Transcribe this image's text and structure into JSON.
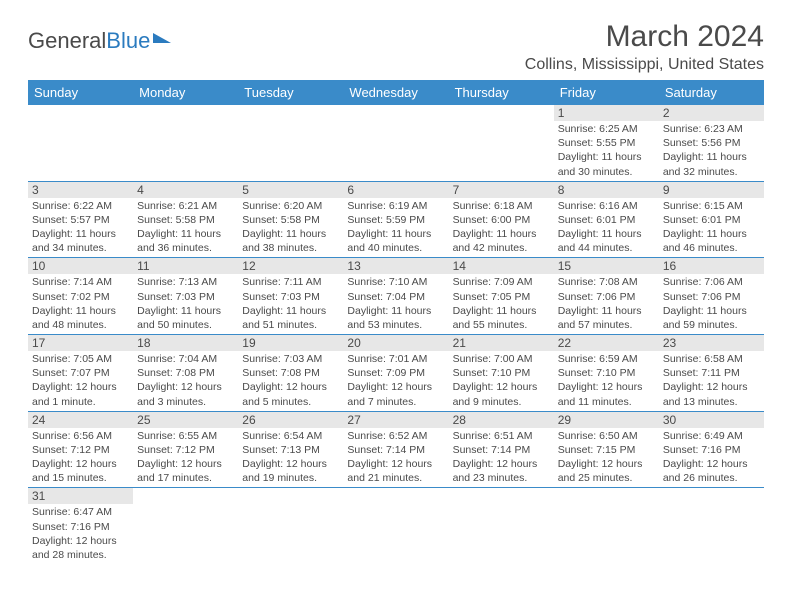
{
  "brand": {
    "part1": "General",
    "part2": "Blue"
  },
  "title": "March 2024",
  "location": "Collins, Mississippi, United States",
  "colors": {
    "header_bg": "#3a8bc9",
    "header_text": "#ffffff",
    "daynum_bg": "#e7e7e7",
    "text": "#4a4a4a",
    "row_border": "#3a8bc9",
    "brand_blue": "#2b7bbf"
  },
  "weekdays": [
    "Sunday",
    "Monday",
    "Tuesday",
    "Wednesday",
    "Thursday",
    "Friday",
    "Saturday"
  ],
  "weeks": [
    [
      null,
      null,
      null,
      null,
      null,
      {
        "n": "1",
        "sr": "Sunrise: 6:25 AM",
        "ss": "Sunset: 5:55 PM",
        "dl": "Daylight: 11 hours and 30 minutes."
      },
      {
        "n": "2",
        "sr": "Sunrise: 6:23 AM",
        "ss": "Sunset: 5:56 PM",
        "dl": "Daylight: 11 hours and 32 minutes."
      }
    ],
    [
      {
        "n": "3",
        "sr": "Sunrise: 6:22 AM",
        "ss": "Sunset: 5:57 PM",
        "dl": "Daylight: 11 hours and 34 minutes."
      },
      {
        "n": "4",
        "sr": "Sunrise: 6:21 AM",
        "ss": "Sunset: 5:58 PM",
        "dl": "Daylight: 11 hours and 36 minutes."
      },
      {
        "n": "5",
        "sr": "Sunrise: 6:20 AM",
        "ss": "Sunset: 5:58 PM",
        "dl": "Daylight: 11 hours and 38 minutes."
      },
      {
        "n": "6",
        "sr": "Sunrise: 6:19 AM",
        "ss": "Sunset: 5:59 PM",
        "dl": "Daylight: 11 hours and 40 minutes."
      },
      {
        "n": "7",
        "sr": "Sunrise: 6:18 AM",
        "ss": "Sunset: 6:00 PM",
        "dl": "Daylight: 11 hours and 42 minutes."
      },
      {
        "n": "8",
        "sr": "Sunrise: 6:16 AM",
        "ss": "Sunset: 6:01 PM",
        "dl": "Daylight: 11 hours and 44 minutes."
      },
      {
        "n": "9",
        "sr": "Sunrise: 6:15 AM",
        "ss": "Sunset: 6:01 PM",
        "dl": "Daylight: 11 hours and 46 minutes."
      }
    ],
    [
      {
        "n": "10",
        "sr": "Sunrise: 7:14 AM",
        "ss": "Sunset: 7:02 PM",
        "dl": "Daylight: 11 hours and 48 minutes."
      },
      {
        "n": "11",
        "sr": "Sunrise: 7:13 AM",
        "ss": "Sunset: 7:03 PM",
        "dl": "Daylight: 11 hours and 50 minutes."
      },
      {
        "n": "12",
        "sr": "Sunrise: 7:11 AM",
        "ss": "Sunset: 7:03 PM",
        "dl": "Daylight: 11 hours and 51 minutes."
      },
      {
        "n": "13",
        "sr": "Sunrise: 7:10 AM",
        "ss": "Sunset: 7:04 PM",
        "dl": "Daylight: 11 hours and 53 minutes."
      },
      {
        "n": "14",
        "sr": "Sunrise: 7:09 AM",
        "ss": "Sunset: 7:05 PM",
        "dl": "Daylight: 11 hours and 55 minutes."
      },
      {
        "n": "15",
        "sr": "Sunrise: 7:08 AM",
        "ss": "Sunset: 7:06 PM",
        "dl": "Daylight: 11 hours and 57 minutes."
      },
      {
        "n": "16",
        "sr": "Sunrise: 7:06 AM",
        "ss": "Sunset: 7:06 PM",
        "dl": "Daylight: 11 hours and 59 minutes."
      }
    ],
    [
      {
        "n": "17",
        "sr": "Sunrise: 7:05 AM",
        "ss": "Sunset: 7:07 PM",
        "dl": "Daylight: 12 hours and 1 minute."
      },
      {
        "n": "18",
        "sr": "Sunrise: 7:04 AM",
        "ss": "Sunset: 7:08 PM",
        "dl": "Daylight: 12 hours and 3 minutes."
      },
      {
        "n": "19",
        "sr": "Sunrise: 7:03 AM",
        "ss": "Sunset: 7:08 PM",
        "dl": "Daylight: 12 hours and 5 minutes."
      },
      {
        "n": "20",
        "sr": "Sunrise: 7:01 AM",
        "ss": "Sunset: 7:09 PM",
        "dl": "Daylight: 12 hours and 7 minutes."
      },
      {
        "n": "21",
        "sr": "Sunrise: 7:00 AM",
        "ss": "Sunset: 7:10 PM",
        "dl": "Daylight: 12 hours and 9 minutes."
      },
      {
        "n": "22",
        "sr": "Sunrise: 6:59 AM",
        "ss": "Sunset: 7:10 PM",
        "dl": "Daylight: 12 hours and 11 minutes."
      },
      {
        "n": "23",
        "sr": "Sunrise: 6:58 AM",
        "ss": "Sunset: 7:11 PM",
        "dl": "Daylight: 12 hours and 13 minutes."
      }
    ],
    [
      {
        "n": "24",
        "sr": "Sunrise: 6:56 AM",
        "ss": "Sunset: 7:12 PM",
        "dl": "Daylight: 12 hours and 15 minutes."
      },
      {
        "n": "25",
        "sr": "Sunrise: 6:55 AM",
        "ss": "Sunset: 7:12 PM",
        "dl": "Daylight: 12 hours and 17 minutes."
      },
      {
        "n": "26",
        "sr": "Sunrise: 6:54 AM",
        "ss": "Sunset: 7:13 PM",
        "dl": "Daylight: 12 hours and 19 minutes."
      },
      {
        "n": "27",
        "sr": "Sunrise: 6:52 AM",
        "ss": "Sunset: 7:14 PM",
        "dl": "Daylight: 12 hours and 21 minutes."
      },
      {
        "n": "28",
        "sr": "Sunrise: 6:51 AM",
        "ss": "Sunset: 7:14 PM",
        "dl": "Daylight: 12 hours and 23 minutes."
      },
      {
        "n": "29",
        "sr": "Sunrise: 6:50 AM",
        "ss": "Sunset: 7:15 PM",
        "dl": "Daylight: 12 hours and 25 minutes."
      },
      {
        "n": "30",
        "sr": "Sunrise: 6:49 AM",
        "ss": "Sunset: 7:16 PM",
        "dl": "Daylight: 12 hours and 26 minutes."
      }
    ],
    [
      {
        "n": "31",
        "sr": "Sunrise: 6:47 AM",
        "ss": "Sunset: 7:16 PM",
        "dl": "Daylight: 12 hours and 28 minutes."
      },
      null,
      null,
      null,
      null,
      null,
      null
    ]
  ]
}
